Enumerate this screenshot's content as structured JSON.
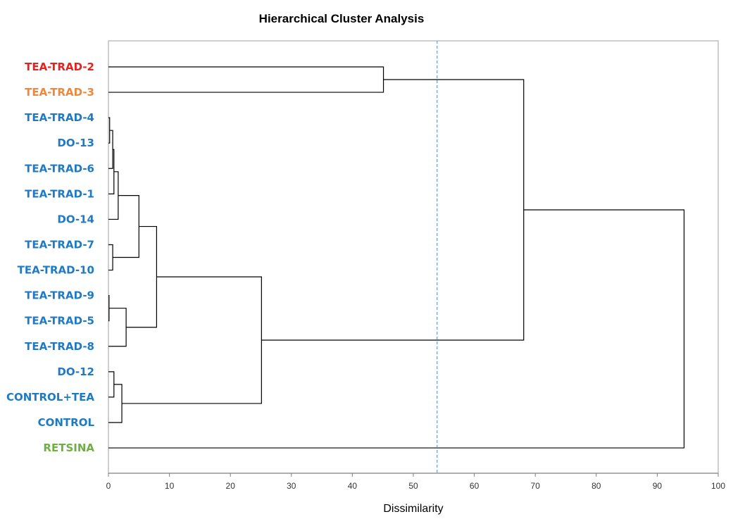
{
  "chart_data": {
    "type": "dendrogram",
    "title": "Hierarchical Cluster Analysis",
    "xlabel": "Dissimilarity",
    "xlim": [
      0,
      100
    ],
    "xticks": [
      0,
      10,
      20,
      30,
      40,
      50,
      60,
      70,
      80,
      90,
      100
    ],
    "truncation_line": 53.9,
    "truncation_color": "#5b9bd5",
    "leaves": [
      {
        "label": "TEA-TRAD-2",
        "color": "#e8201e"
      },
      {
        "label": "TEA-TRAD-3",
        "color": "#f0883a"
      },
      {
        "label": "TEA-TRAD-4",
        "color": "#1f7ac4"
      },
      {
        "label": "DO-13",
        "color": "#1f7ac4"
      },
      {
        "label": "TEA-TRAD-6",
        "color": "#1f7ac4"
      },
      {
        "label": "TEA-TRAD-1",
        "color": "#1f7ac4"
      },
      {
        "label": "DO-14",
        "color": "#1f7ac4"
      },
      {
        "label": "TEA-TRAD-7",
        "color": "#1f7ac4"
      },
      {
        "label": "TEA-TRAD-10",
        "color": "#1f7ac4"
      },
      {
        "label": "TEA-TRAD-9",
        "color": "#1f7ac4"
      },
      {
        "label": "TEA-TRAD-5",
        "color": "#1f7ac4"
      },
      {
        "label": "TEA-TRAD-8",
        "color": "#1f7ac4"
      },
      {
        "label": "DO-12",
        "color": "#1f7ac4"
      },
      {
        "label": "CONTROL+TEA",
        "color": "#1f7ac4"
      },
      {
        "label": "CONTROL",
        "color": "#1f7ac4"
      },
      {
        "label": "RETSINA",
        "color": "#70ad47"
      }
    ],
    "merges": [
      {
        "id": 16,
        "a": 2,
        "b": 3,
        "height": 0.2
      },
      {
        "id": 17,
        "a": 16,
        "b": 4,
        "height": 0.7
      },
      {
        "id": 18,
        "a": 17,
        "b": 5,
        "height": 0.9
      },
      {
        "id": 19,
        "a": 18,
        "b": 6,
        "height": 1.6
      },
      {
        "id": 20,
        "a": 7,
        "b": 8,
        "height": 0.7
      },
      {
        "id": 21,
        "a": 19,
        "b": 20,
        "height": 5.0
      },
      {
        "id": 22,
        "a": 9,
        "b": 10,
        "height": 0.1
      },
      {
        "id": 23,
        "a": 22,
        "b": 11,
        "height": 2.9
      },
      {
        "id": 24,
        "a": 21,
        "b": 23,
        "height": 7.9
      },
      {
        "id": 25,
        "a": 12,
        "b": 13,
        "height": 0.9
      },
      {
        "id": 26,
        "a": 25,
        "b": 14,
        "height": 2.2
      },
      {
        "id": 27,
        "a": 24,
        "b": 26,
        "height": 25.1
      },
      {
        "id": 28,
        "a": 0,
        "b": 1,
        "height": 45.1
      },
      {
        "id": 29,
        "a": 28,
        "b": 27,
        "height": 68.1
      },
      {
        "id": 30,
        "a": 29,
        "b": 15,
        "height": 94.4
      }
    ]
  }
}
